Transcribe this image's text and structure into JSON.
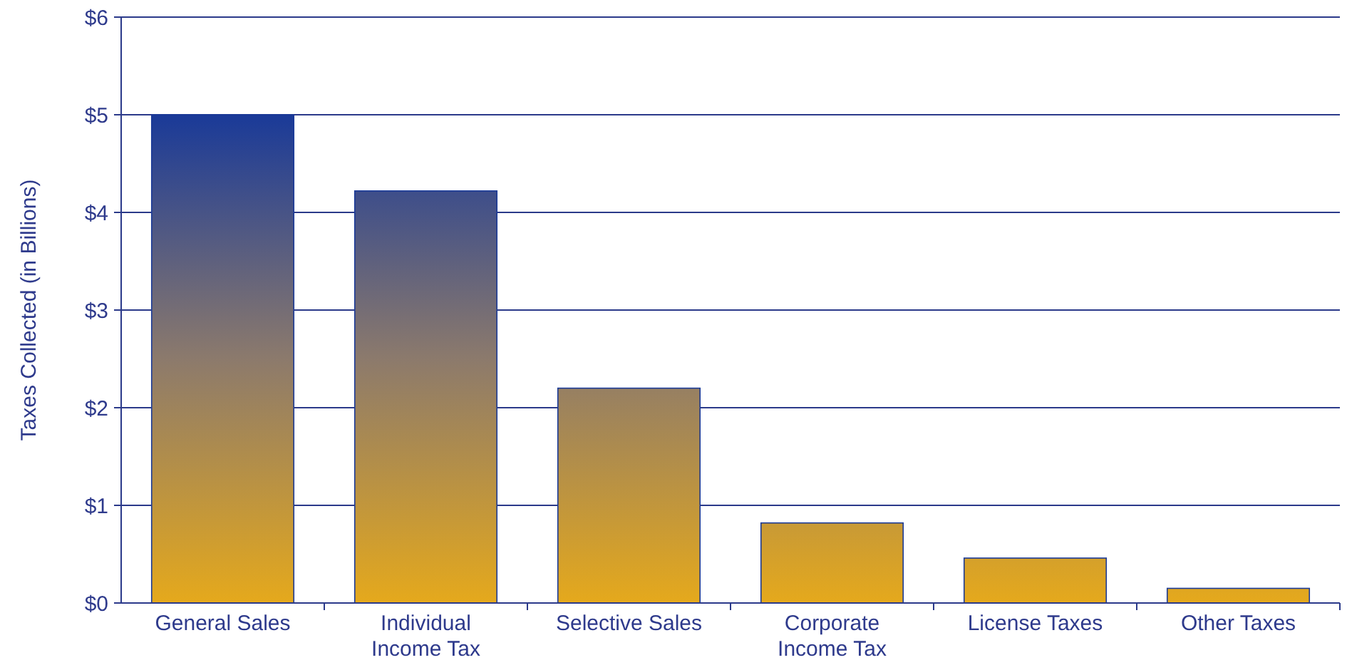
{
  "chart_data": {
    "type": "bar",
    "ylabel": "Taxes Collected (in Billions)",
    "categories": [
      "General Sales",
      "Individual Income Tax",
      "Selective Sales",
      "Corporate Income Tax",
      "License Taxes",
      "Other Taxes"
    ],
    "values": [
      5.0,
      4.22,
      2.2,
      0.82,
      0.46,
      0.15
    ],
    "color": "#1a3a98",
    "ylim": [
      0,
      6
    ],
    "yticks": [
      {
        "value": 0,
        "label": "$0"
      },
      {
        "value": 1,
        "label": "$1"
      },
      {
        "value": 2,
        "label": "$2"
      },
      {
        "value": 3,
        "label": "$3"
      },
      {
        "value": 4,
        "label": "$4"
      },
      {
        "value": 5,
        "label": "$5"
      },
      {
        "value": 6,
        "label": "$6"
      }
    ],
    "grid": "y"
  }
}
